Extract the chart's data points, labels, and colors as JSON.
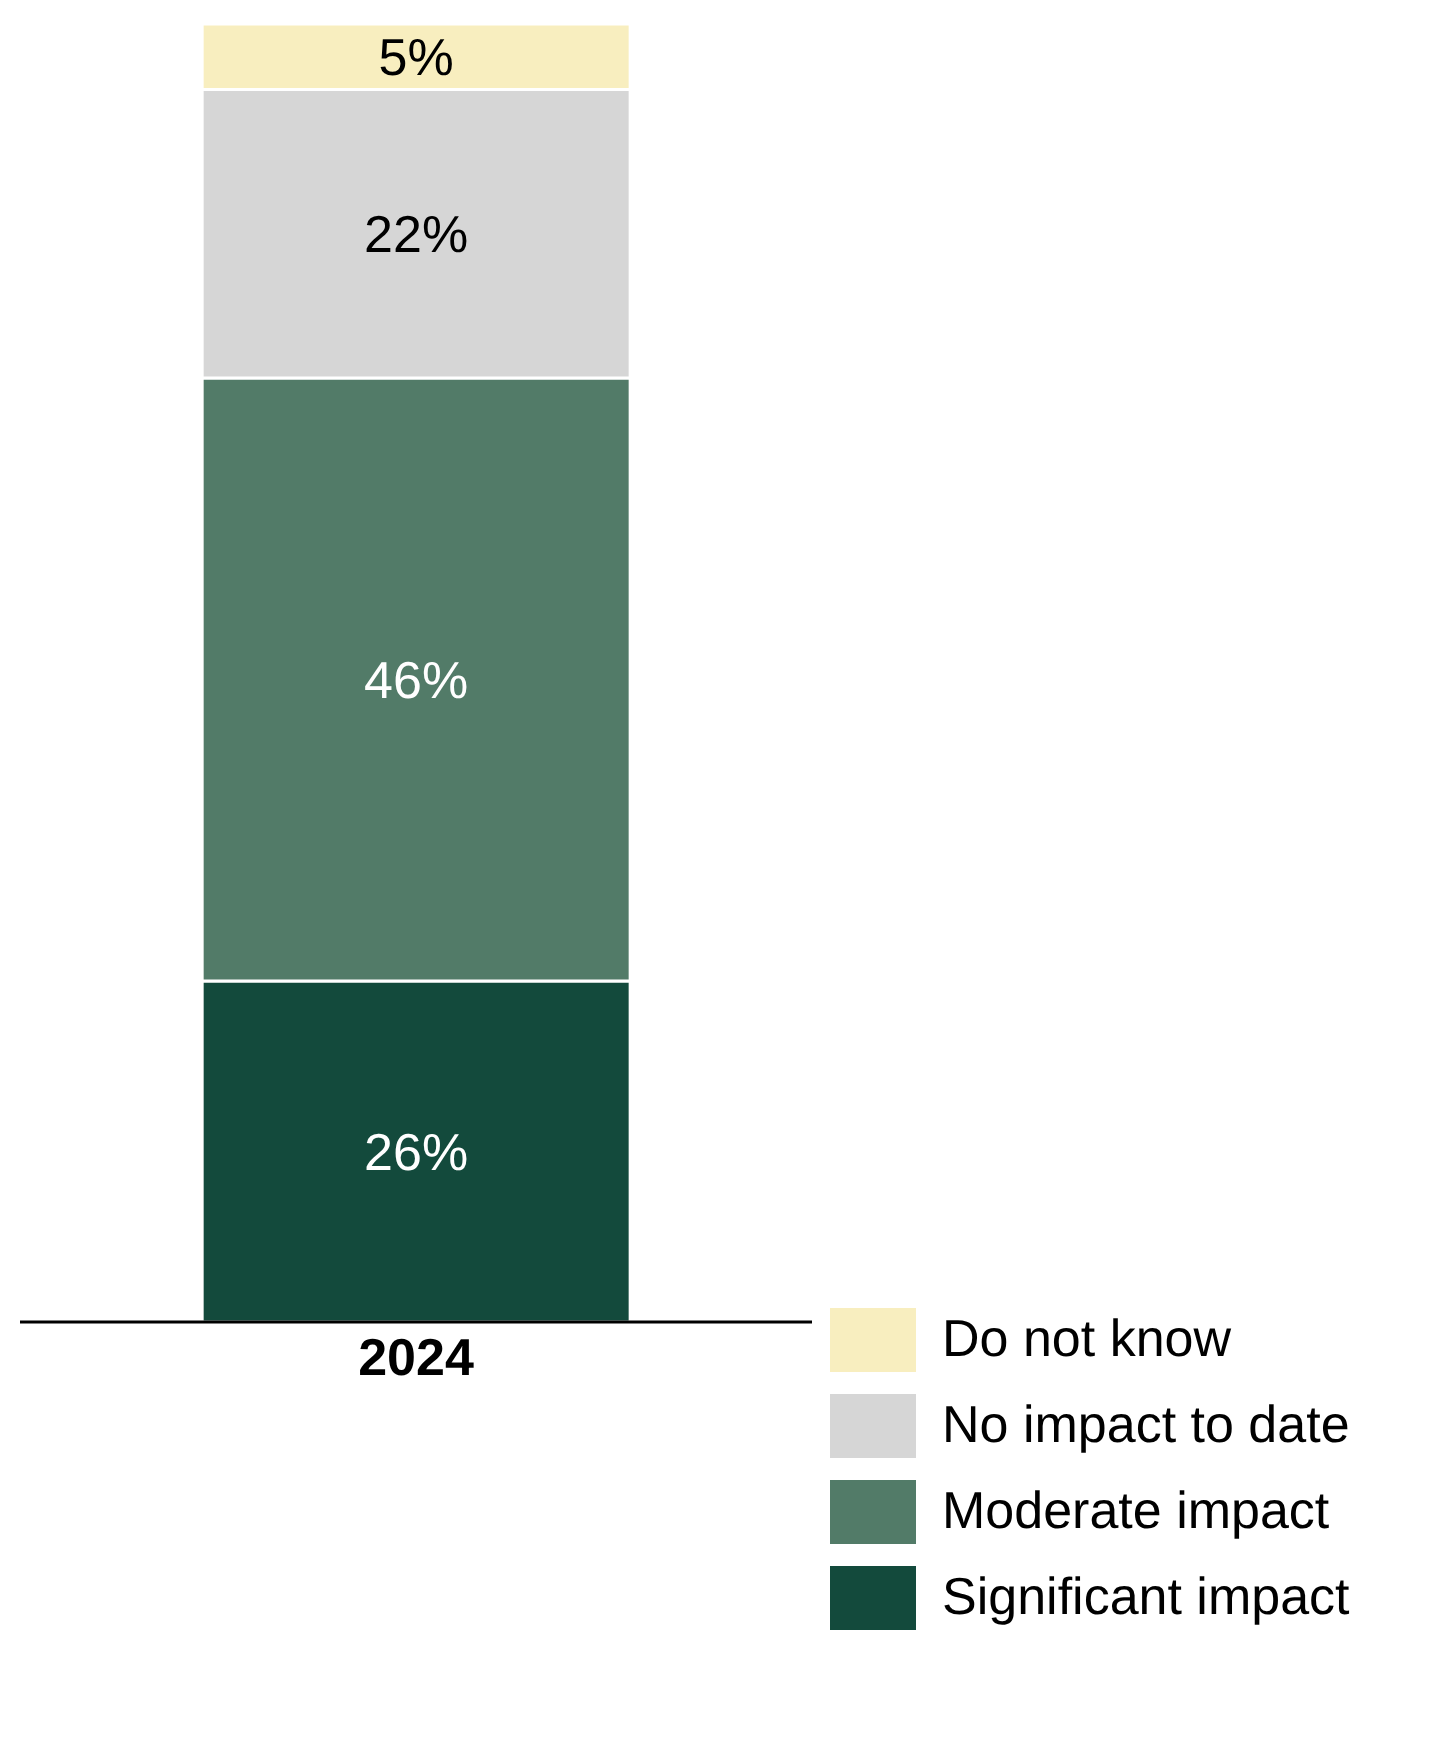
{
  "chart_data": {
    "type": "bar",
    "stacked": true,
    "categories": [
      "2024"
    ],
    "tick_labels": "x",
    "legend": "bottom right",
    "grid": false,
    "series": [
      {
        "name": "Significant impact",
        "color": "#134a3c",
        "values": [
          26
        ],
        "value_labels": [
          "26%"
        ]
      },
      {
        "name": "Moderate impact",
        "color": "#527b68",
        "values": [
          46
        ],
        "value_labels": [
          "46%"
        ]
      },
      {
        "name": "No impact to date",
        "color": "#d6d6d6",
        "values": [
          22
        ],
        "value_labels": [
          "22%"
        ]
      },
      {
        "name": "Do not know",
        "color": "#f8eebf",
        "values": [
          5
        ],
        "value_labels": [
          "5%"
        ]
      }
    ]
  }
}
